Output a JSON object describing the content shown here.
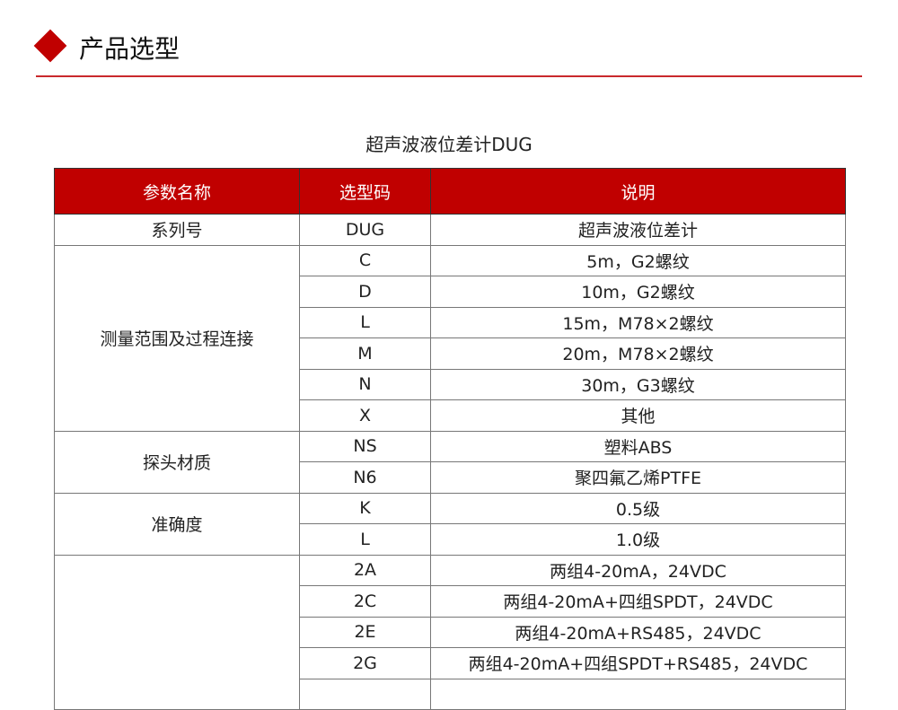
{
  "header": {
    "title": "产品选型",
    "accent": "#c00000"
  },
  "caption": "超声波液位差计DUG",
  "table": {
    "headers": [
      "参数名称",
      "选型码",
      "说明"
    ],
    "groups": [
      {
        "name": "系列号",
        "rows": [
          {
            "code": "DUG",
            "desc": "超声波液位差计"
          }
        ]
      },
      {
        "name": "测量范围及过程连接",
        "rows": [
          {
            "code": "C",
            "desc": "5m，G2螺纹"
          },
          {
            "code": "D",
            "desc": "10m，G2螺纹"
          },
          {
            "code": "L",
            "desc": "15m，M78×2螺纹"
          },
          {
            "code": "M",
            "desc": "20m，M78×2螺纹"
          },
          {
            "code": "N",
            "desc": "30m，G3螺纹"
          },
          {
            "code": "X",
            "desc": "其他"
          }
        ]
      },
      {
        "name": "探头材质",
        "rows": [
          {
            "code": "NS",
            "desc": "塑料ABS"
          },
          {
            "code": "N6",
            "desc": "聚四氟乙烯PTFE"
          }
        ]
      },
      {
        "name": "准确度",
        "rows": [
          {
            "code": "K",
            "desc": "0.5级"
          },
          {
            "code": "L",
            "desc": "1.0级"
          }
        ]
      },
      {
        "name": "",
        "rows": [
          {
            "code": "2A",
            "desc": "两组4-20mA，24VDC"
          },
          {
            "code": "2C",
            "desc": "两组4-20mA+四组SPDT，24VDC"
          },
          {
            "code": "2E",
            "desc": "两组4-20mA+RS485，24VDC"
          },
          {
            "code": "2G",
            "desc": "两组4-20mA+四组SPDT+RS485，24VDC"
          },
          {
            "code": "",
            "desc": ""
          }
        ]
      }
    ]
  }
}
